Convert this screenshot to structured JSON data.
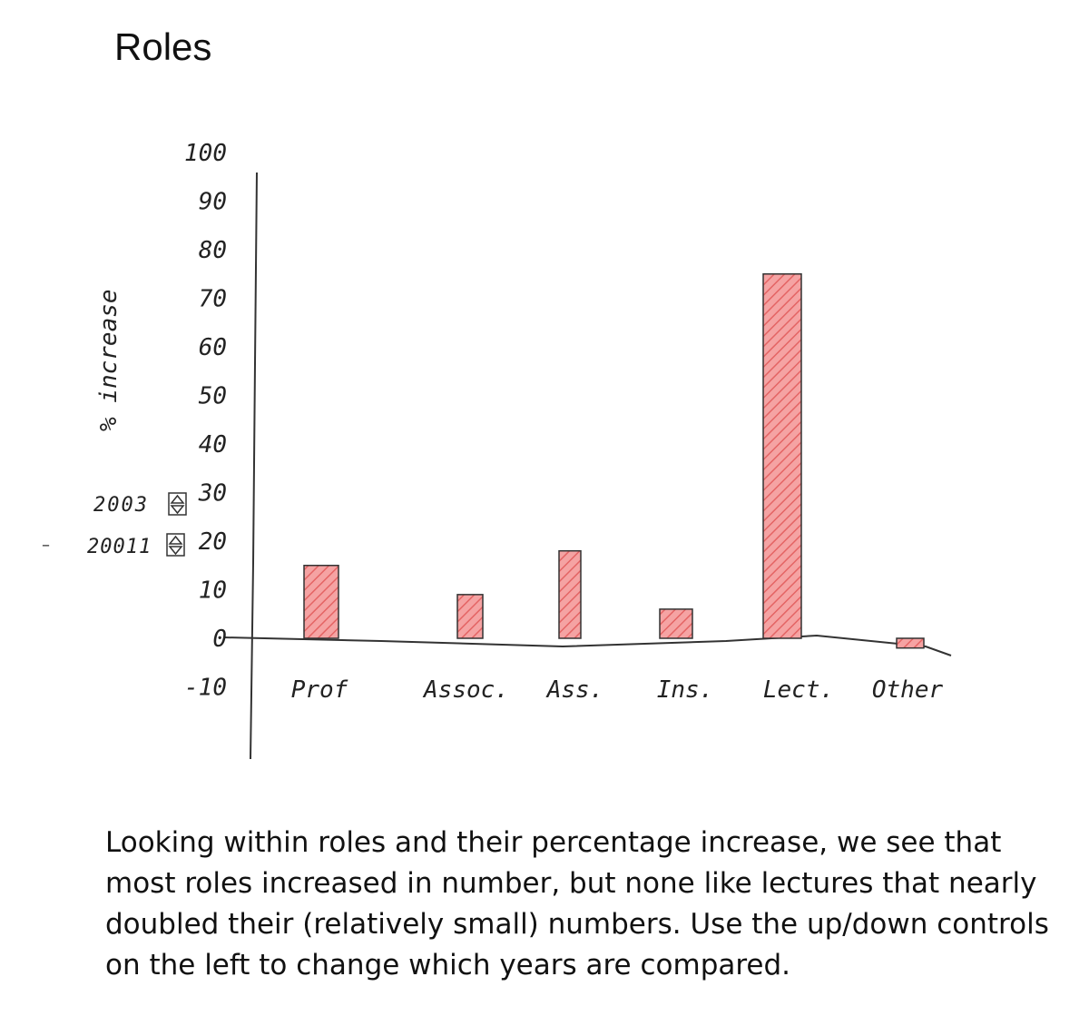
{
  "page": {
    "title": "Roles",
    "caption": "Looking within roles and their percentage increase, we see that most roles increased in number, but none like lectures that nearly doubled their (relatively small) numbers. Use the up/down controls on the left to change which years are compared."
  },
  "controls": {
    "year_a": "2003",
    "year_b": "20011"
  },
  "colors": {
    "bar_fill": "#f08080",
    "bar_stroke": "#333333",
    "axis": "#333333"
  },
  "chart_data": {
    "type": "bar",
    "ylabel": "% increase",
    "ylim": [
      -10,
      100
    ],
    "yticks": [
      "100",
      "90",
      "80",
      "70",
      "60",
      "50",
      "40",
      "30",
      "20",
      "10",
      "0",
      "-10"
    ],
    "ytick_values": [
      100,
      90,
      80,
      70,
      60,
      50,
      40,
      30,
      20,
      10,
      0,
      -10
    ],
    "categories": [
      "Prof",
      "Assoc.",
      "Ass.",
      "Ins.",
      "Lect.",
      "Other"
    ],
    "values": [
      15,
      9,
      18,
      6,
      75,
      -2
    ],
    "grid": false,
    "legend": "none"
  }
}
